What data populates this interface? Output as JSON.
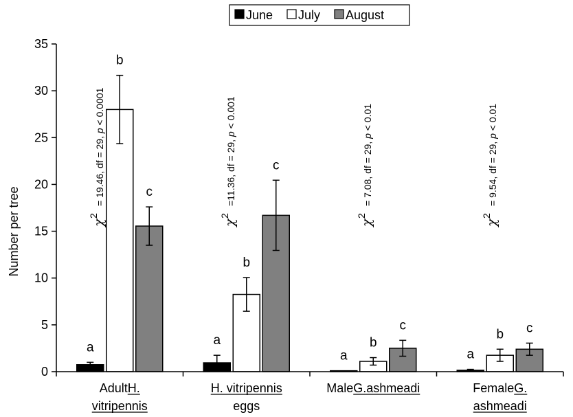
{
  "chart_data": {
    "type": "bar",
    "ylabel": "Number per tree",
    "ylim": [
      0,
      35
    ],
    "yticks": [
      0,
      5,
      10,
      15,
      20,
      25,
      30,
      35
    ],
    "grid": false,
    "legend_position": "top-center",
    "colors": {
      "June": "#000000",
      "July": "#ffffff",
      "August": "#808080"
    },
    "categories": [
      {
        "lines": [
          [
            {
              "t": "Adult ",
              "u": false
            },
            {
              "t": "H.",
              "u": true
            }
          ],
          [
            {
              "t": "vitripennis",
              "u": true
            }
          ]
        ]
      },
      {
        "lines": [
          [
            {
              "t": "H. vitripennis",
              "u": true
            }
          ],
          [
            {
              "t": "eggs",
              "u": false
            }
          ]
        ]
      },
      {
        "lines": [
          [
            {
              "t": "Male ",
              "u": false
            },
            {
              "t": "G.ashmeadi",
              "u": true
            }
          ]
        ]
      },
      {
        "lines": [
          [
            {
              "t": "Female ",
              "u": false
            },
            {
              "t": "G.",
              "u": true
            }
          ],
          [
            {
              "t": "ashmeadi",
              "u": true
            }
          ]
        ]
      }
    ],
    "series": [
      {
        "name": "June",
        "values": [
          0.75,
          0.95,
          0.1,
          0.15
        ],
        "errors": [
          0.25,
          0.8,
          0.0,
          0.1
        ],
        "letters": [
          "a",
          "a",
          "a",
          "a"
        ]
      },
      {
        "name": "July",
        "values": [
          28.0,
          8.25,
          1.1,
          1.75
        ],
        "errors": [
          3.65,
          1.8,
          0.4,
          0.65
        ],
        "letters": [
          "b",
          "b",
          "b",
          "b"
        ]
      },
      {
        "name": "August",
        "values": [
          15.55,
          16.7,
          2.5,
          2.4
        ],
        "errors": [
          2.05,
          3.75,
          0.85,
          0.65
        ],
        "letters": [
          "c",
          "c",
          "c",
          "c"
        ]
      }
    ],
    "annotations": [
      {
        "symbol": "χ",
        "sup": "2",
        "text": "= 19.46, df = 29, p < 0.0001"
      },
      {
        "symbol": "χ",
        "sup": "2",
        "text": "=11.36, df = 29, p < 0.001"
      },
      {
        "symbol": "χ",
        "sup": "2",
        "text": "= 7.08, df = 29, p < 0.01"
      },
      {
        "symbol": "χ",
        "sup": "2",
        "text": "= 9.54, df = 29, p < 0.01"
      }
    ]
  }
}
